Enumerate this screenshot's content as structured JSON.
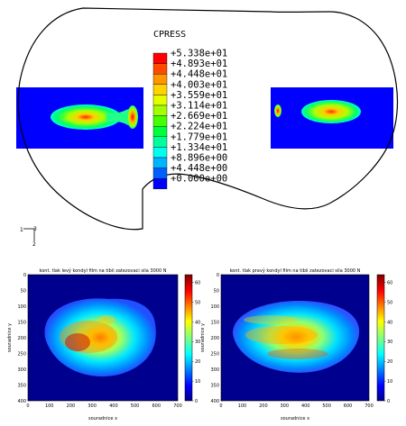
{
  "fea": {
    "legend": {
      "title": "CPRESS",
      "values": [
        "+5.338e+01",
        "+4.893e+01",
        "+4.448e+01",
        "+4.003e+01",
        "+3.559e+01",
        "+3.114e+01",
        "+2.669e+01",
        "+2.224e+01",
        "+1.779e+01",
        "+1.334e+01",
        "+8.896e+00",
        "+4.448e+00",
        "+0.000e+00"
      ],
      "colors": [
        "#ff0000",
        "#ff4a00",
        "#ff9600",
        "#ffd200",
        "#e6ff00",
        "#a0ff00",
        "#46ff00",
        "#00ff3c",
        "#00ff9a",
        "#00fff0",
        "#00b4ff",
        "#0060ff",
        "#0000ff"
      ]
    },
    "axis_triad": {
      "x_label": "1",
      "y_label": "3",
      "z_label": "2"
    }
  },
  "plots": [
    {
      "title": "kont. tlak levý kondyl film na tibii zatezovaci sila 3000 N",
      "xlabel": "souradnice x",
      "ylabel": "souradnice y",
      "xticks": [
        "0",
        "100",
        "200",
        "300",
        "400",
        "500",
        "600",
        "700"
      ],
      "yticks": [
        "0",
        "50",
        "100",
        "150",
        "200",
        "250",
        "300",
        "350",
        "400"
      ],
      "cbar_ticks": [
        "0",
        "10",
        "20",
        "30",
        "40",
        "50",
        "60"
      ]
    },
    {
      "title": "kont. tlak pravý kondyl film na tibii zatezovaci sila 3000 N",
      "xlabel": "souradnice x",
      "ylabel": "souradnice y",
      "xticks": [
        "0",
        "100",
        "200",
        "300",
        "400",
        "500",
        "600",
        "700"
      ],
      "yticks": [
        "0",
        "50",
        "100",
        "150",
        "200",
        "250",
        "300",
        "350",
        "400"
      ],
      "cbar_ticks": [
        "0",
        "10",
        "20",
        "30",
        "40",
        "50",
        "60"
      ]
    }
  ]
}
